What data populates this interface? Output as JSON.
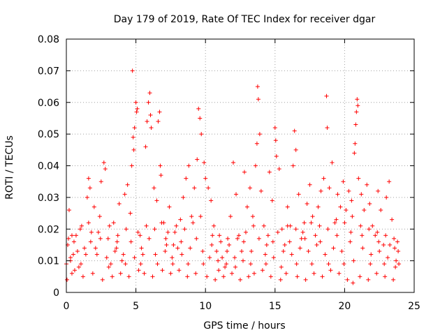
{
  "chart_data": {
    "type": "scatter",
    "title": "Day 179 of 2019, Rate Of TEC Index for receiver dgar",
    "xlabel": "GPS time / hours",
    "ylabel": "ROTI / TECUs",
    "xlim": [
      0,
      25
    ],
    "ylim": [
      0,
      0.08
    ],
    "xticks": [
      0,
      5,
      10,
      15,
      20,
      25
    ],
    "xtick_labels": [
      "0",
      "5",
      "10",
      "15",
      "20",
      "25"
    ],
    "yticks": [
      0,
      0.01,
      0.02,
      0.03,
      0.04,
      0.05,
      0.06,
      0.07,
      0.08
    ],
    "ytick_labels": [
      "0",
      "0.01",
      "0.02",
      "0.03",
      "0.04",
      "0.05",
      "0.06",
      "0.07",
      "0.08"
    ],
    "grid": true,
    "marker": "+",
    "marker_color": "#ff0000",
    "series": [
      {
        "name": "ROTI",
        "points": [
          [
            0.0,
            0.009
          ],
          [
            0.1,
            0.015
          ],
          [
            0.2,
            0.026
          ],
          [
            0.3,
            0.011
          ],
          [
            0.4,
            0.006
          ],
          [
            0.5,
            0.012
          ],
          [
            0.7,
            0.018
          ],
          [
            0.9,
            0.008
          ],
          [
            1.1,
            0.021
          ],
          [
            1.3,
            0.014
          ],
          [
            1.5,
            0.03
          ],
          [
            1.6,
            0.036
          ],
          [
            1.7,
            0.033
          ],
          [
            1.8,
            0.019
          ],
          [
            2.0,
            0.027
          ],
          [
            2.2,
            0.012
          ],
          [
            2.4,
            0.024
          ],
          [
            2.5,
            0.035
          ],
          [
            2.7,
            0.041
          ],
          [
            2.8,
            0.039
          ],
          [
            3.0,
            0.017
          ],
          [
            3.2,
            0.009
          ],
          [
            3.4,
            0.022
          ],
          [
            3.6,
            0.014
          ],
          [
            3.8,
            0.028
          ],
          [
            4.0,
            0.01
          ],
          [
            4.2,
            0.031
          ],
          [
            4.4,
            0.034
          ],
          [
            4.6,
            0.025
          ],
          [
            4.7,
            0.04
          ],
          [
            4.75,
            0.07
          ],
          [
            4.8,
            0.049
          ],
          [
            4.85,
            0.045
          ],
          [
            4.9,
            0.052
          ],
          [
            5.0,
            0.06
          ],
          [
            5.05,
            0.057
          ],
          [
            5.1,
            0.058
          ],
          [
            5.3,
            0.018
          ],
          [
            5.5,
            0.012
          ],
          [
            5.7,
            0.046
          ],
          [
            5.8,
            0.054
          ],
          [
            5.9,
            0.06
          ],
          [
            6.0,
            0.063
          ],
          [
            6.05,
            0.056
          ],
          [
            6.1,
            0.052
          ],
          [
            6.3,
            0.033
          ],
          [
            6.5,
            0.029
          ],
          [
            6.6,
            0.054
          ],
          [
            6.7,
            0.057
          ],
          [
            6.75,
            0.04
          ],
          [
            6.8,
            0.037
          ],
          [
            7.0,
            0.022
          ],
          [
            7.2,
            0.015
          ],
          [
            7.4,
            0.027
          ],
          [
            7.6,
            0.011
          ],
          [
            7.8,
            0.019
          ],
          [
            8.0,
            0.014
          ],
          [
            8.2,
            0.023
          ],
          [
            8.4,
            0.03
          ],
          [
            8.6,
            0.036
          ],
          [
            8.8,
            0.04
          ],
          [
            9.0,
            0.024
          ],
          [
            9.2,
            0.033
          ],
          [
            9.4,
            0.042
          ],
          [
            9.5,
            0.058
          ],
          [
            9.6,
            0.055
          ],
          [
            9.7,
            0.05
          ],
          [
            9.9,
            0.041
          ],
          [
            10.0,
            0.036
          ],
          [
            10.2,
            0.033
          ],
          [
            10.4,
            0.029
          ],
          [
            10.6,
            0.021
          ],
          [
            10.8,
            0.013
          ],
          [
            11.0,
            0.018
          ],
          [
            11.2,
            0.011
          ],
          [
            11.4,
            0.008
          ],
          [
            11.6,
            0.017
          ],
          [
            11.8,
            0.024
          ],
          [
            12.0,
            0.041
          ],
          [
            12.2,
            0.031
          ],
          [
            12.4,
            0.018
          ],
          [
            12.6,
            0.013
          ],
          [
            12.8,
            0.038
          ],
          [
            13.0,
            0.027
          ],
          [
            13.2,
            0.033
          ],
          [
            13.4,
            0.024
          ],
          [
            13.6,
            0.04
          ],
          [
            13.7,
            0.047
          ],
          [
            13.75,
            0.065
          ],
          [
            13.8,
            0.061
          ],
          [
            13.9,
            0.05
          ],
          [
            14.0,
            0.032
          ],
          [
            14.2,
            0.021
          ],
          [
            14.4,
            0.015
          ],
          [
            14.6,
            0.038
          ],
          [
            14.8,
            0.029
          ],
          [
            15.0,
            0.052
          ],
          [
            15.05,
            0.048
          ],
          [
            15.1,
            0.043
          ],
          [
            15.3,
            0.039
          ],
          [
            15.5,
            0.02
          ],
          [
            15.7,
            0.015
          ],
          [
            15.9,
            0.027
          ],
          [
            16.1,
            0.021
          ],
          [
            16.3,
            0.04
          ],
          [
            16.4,
            0.051
          ],
          [
            16.5,
            0.045
          ],
          [
            16.7,
            0.031
          ],
          [
            16.9,
            0.017
          ],
          [
            17.1,
            0.022
          ],
          [
            17.3,
            0.028
          ],
          [
            17.5,
            0.034
          ],
          [
            17.7,
            0.024
          ],
          [
            17.9,
            0.018
          ],
          [
            18.1,
            0.027
          ],
          [
            18.3,
            0.032
          ],
          [
            18.5,
            0.036
          ],
          [
            18.7,
            0.062
          ],
          [
            18.75,
            0.052
          ],
          [
            18.9,
            0.033
          ],
          [
            19.1,
            0.041
          ],
          [
            19.3,
            0.022
          ],
          [
            19.5,
            0.031
          ],
          [
            19.7,
            0.027
          ],
          [
            19.9,
            0.035
          ],
          [
            20.1,
            0.026
          ],
          [
            20.3,
            0.032
          ],
          [
            20.5,
            0.029
          ],
          [
            20.7,
            0.044
          ],
          [
            20.75,
            0.047
          ],
          [
            20.8,
            0.053
          ],
          [
            20.85,
            0.057
          ],
          [
            20.9,
            0.061
          ],
          [
            20.95,
            0.059
          ],
          [
            21.0,
            0.036
          ],
          [
            21.2,
            0.031
          ],
          [
            21.4,
            0.026
          ],
          [
            21.6,
            0.034
          ],
          [
            21.8,
            0.028
          ],
          [
            22.0,
            0.021
          ],
          [
            22.2,
            0.018
          ],
          [
            22.4,
            0.032
          ],
          [
            22.6,
            0.026
          ],
          [
            22.8,
            0.015
          ],
          [
            23.0,
            0.03
          ],
          [
            23.2,
            0.035
          ],
          [
            23.4,
            0.023
          ],
          [
            23.6,
            0.014
          ],
          [
            23.8,
            0.016
          ],
          [
            23.9,
            0.009
          ],
          [
            0.05,
            0.004
          ],
          [
            0.6,
            0.007
          ],
          [
            1.2,
            0.005
          ],
          [
            1.9,
            0.006
          ],
          [
            2.6,
            0.004
          ],
          [
            3.3,
            0.005
          ],
          [
            3.9,
            0.006
          ],
          [
            4.5,
            0.005
          ],
          [
            5.2,
            0.007
          ],
          [
            5.6,
            0.006
          ],
          [
            6.2,
            0.005
          ],
          [
            6.9,
            0.007
          ],
          [
            7.5,
            0.006
          ],
          [
            8.1,
            0.007
          ],
          [
            8.7,
            0.005
          ],
          [
            9.3,
            0.006
          ],
          [
            10.1,
            0.005
          ],
          [
            10.7,
            0.004
          ],
          [
            11.3,
            0.005
          ],
          [
            11.9,
            0.006
          ],
          [
            12.5,
            0.004
          ],
          [
            13.1,
            0.005
          ],
          [
            13.5,
            0.006
          ],
          [
            14.1,
            0.007
          ],
          [
            14.7,
            0.005
          ],
          [
            15.4,
            0.004
          ],
          [
            15.8,
            0.006
          ],
          [
            16.6,
            0.005
          ],
          [
            17.2,
            0.004
          ],
          [
            17.8,
            0.006
          ],
          [
            18.4,
            0.005
          ],
          [
            19.0,
            0.007
          ],
          [
            19.6,
            0.006
          ],
          [
            20.2,
            0.004
          ],
          [
            20.6,
            0.003
          ],
          [
            21.1,
            0.005
          ],
          [
            21.7,
            0.004
          ],
          [
            22.3,
            0.006
          ],
          [
            22.9,
            0.005
          ],
          [
            23.5,
            0.004
          ],
          [
            0.3,
            0.01
          ],
          [
            0.8,
            0.013
          ],
          [
            1.4,
            0.012
          ],
          [
            2.1,
            0.014
          ],
          [
            2.9,
            0.011
          ],
          [
            3.5,
            0.013
          ],
          [
            4.1,
            0.012
          ],
          [
            4.9,
            0.011
          ],
          [
            5.4,
            0.014
          ],
          [
            6.4,
            0.012
          ],
          [
            7.1,
            0.013
          ],
          [
            7.7,
            0.015
          ],
          [
            8.3,
            0.012
          ],
          [
            8.9,
            0.014
          ],
          [
            9.8,
            0.013
          ],
          [
            10.3,
            0.011
          ],
          [
            10.9,
            0.01
          ],
          [
            11.5,
            0.009
          ],
          [
            12.1,
            0.011
          ],
          [
            12.7,
            0.01
          ],
          [
            13.3,
            0.013
          ],
          [
            14.3,
            0.012
          ],
          [
            14.9,
            0.011
          ],
          [
            15.6,
            0.013
          ],
          [
            16.2,
            0.012
          ],
          [
            16.8,
            0.014
          ],
          [
            17.4,
            0.013
          ],
          [
            18.0,
            0.015
          ],
          [
            18.6,
            0.012
          ],
          [
            19.2,
            0.014
          ],
          [
            19.8,
            0.013
          ],
          [
            20.4,
            0.016
          ],
          [
            21.3,
            0.014
          ],
          [
            21.9,
            0.012
          ],
          [
            22.5,
            0.013
          ],
          [
            23.1,
            0.011
          ],
          [
            23.7,
            0.01
          ],
          [
            0.4,
            0.018
          ],
          [
            1.0,
            0.02
          ],
          [
            1.6,
            0.022
          ],
          [
            2.3,
            0.019
          ],
          [
            3.1,
            0.021
          ],
          [
            3.7,
            0.018
          ],
          [
            4.3,
            0.02
          ],
          [
            5.15,
            0.019
          ],
          [
            5.75,
            0.021
          ],
          [
            6.35,
            0.02
          ],
          [
            6.85,
            0.022
          ],
          [
            7.3,
            0.019
          ],
          [
            7.9,
            0.021
          ],
          [
            8.5,
            0.02
          ],
          [
            9.1,
            0.022
          ],
          [
            9.65,
            0.024
          ],
          [
            10.5,
            0.018
          ],
          [
            11.1,
            0.016
          ],
          [
            11.7,
            0.015
          ],
          [
            12.3,
            0.017
          ],
          [
            12.9,
            0.019
          ],
          [
            13.45,
            0.021
          ],
          [
            14.5,
            0.018
          ],
          [
            15.2,
            0.019
          ],
          [
            15.9,
            0.021
          ],
          [
            16.5,
            0.02
          ],
          [
            17.0,
            0.019
          ],
          [
            17.6,
            0.022
          ],
          [
            18.2,
            0.021
          ],
          [
            18.8,
            0.02
          ],
          [
            19.4,
            0.023
          ],
          [
            20.0,
            0.022
          ],
          [
            20.55,
            0.024
          ],
          [
            21.15,
            0.021
          ],
          [
            21.75,
            0.02
          ],
          [
            22.35,
            0.019
          ],
          [
            22.95,
            0.018
          ],
          [
            23.55,
            0.017
          ],
          [
            23.85,
            0.013
          ],
          [
            0.15,
            0.017
          ],
          [
            0.55,
            0.016
          ],
          [
            1.05,
            0.009
          ],
          [
            1.75,
            0.016
          ],
          [
            2.45,
            0.017
          ],
          [
            3.05,
            0.008
          ],
          [
            3.65,
            0.016
          ],
          [
            4.25,
            0.009
          ],
          [
            4.65,
            0.016
          ],
          [
            5.35,
            0.009
          ],
          [
            5.95,
            0.017
          ],
          [
            6.55,
            0.009
          ],
          [
            7.15,
            0.017
          ],
          [
            7.65,
            0.009
          ],
          [
            8.25,
            0.016
          ],
          [
            8.75,
            0.009
          ],
          [
            9.35,
            0.017
          ],
          [
            9.85,
            0.009
          ],
          [
            10.45,
            0.015
          ],
          [
            10.95,
            0.007
          ],
          [
            11.55,
            0.013
          ],
          [
            12.15,
            0.008
          ],
          [
            12.75,
            0.016
          ],
          [
            13.25,
            0.009
          ],
          [
            13.85,
            0.017
          ],
          [
            14.35,
            0.009
          ],
          [
            14.85,
            0.016
          ],
          [
            15.45,
            0.008
          ],
          [
            16.05,
            0.016
          ],
          [
            16.55,
            0.009
          ],
          [
            17.15,
            0.017
          ],
          [
            17.65,
            0.009
          ],
          [
            18.25,
            0.016
          ],
          [
            18.85,
            0.009
          ],
          [
            19.45,
            0.018
          ],
          [
            19.95,
            0.009
          ],
          [
            20.45,
            0.019
          ],
          [
            20.65,
            0.01
          ],
          [
            21.25,
            0.018
          ],
          [
            21.85,
            0.009
          ],
          [
            22.45,
            0.016
          ],
          [
            22.85,
            0.009
          ],
          [
            23.25,
            0.015
          ],
          [
            23.65,
            0.008
          ]
        ]
      }
    ]
  }
}
